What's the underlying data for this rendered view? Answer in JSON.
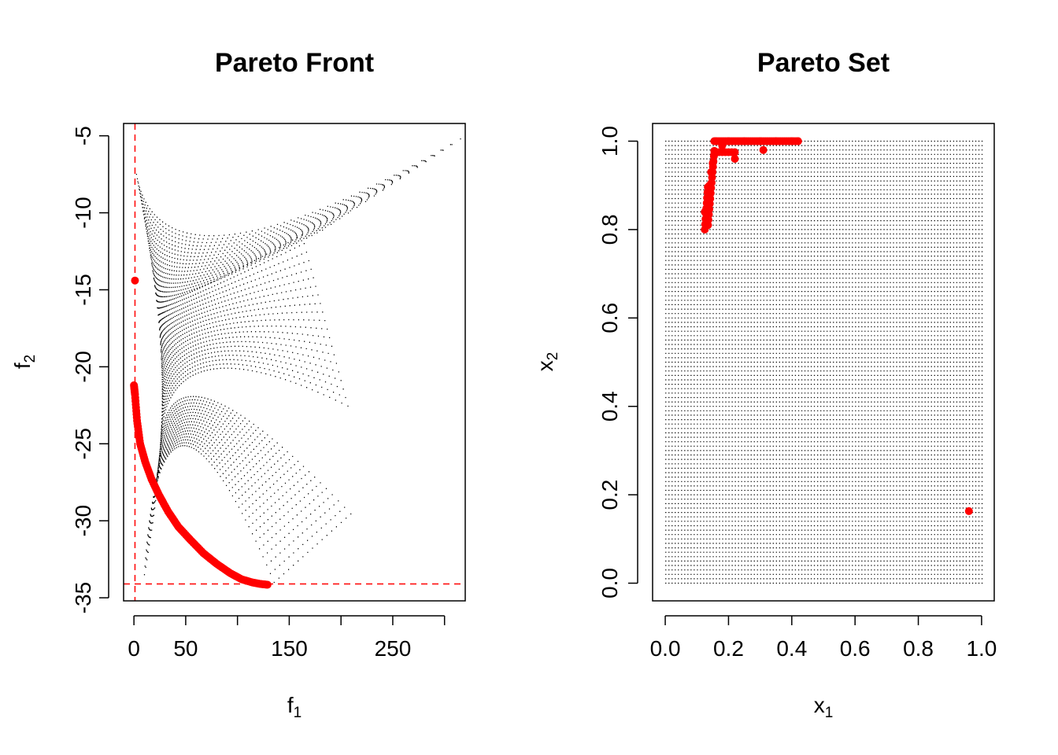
{
  "chart_data": [
    {
      "type": "scatter",
      "title": "Pareto Front",
      "xlabel": "f",
      "xlabel_sub": "1",
      "ylabel": "f",
      "ylabel_sub": "2",
      "xlim": [
        -10,
        320
      ],
      "ylim": [
        -35.2,
        -4.2
      ],
      "xticks": [
        0,
        50,
        150,
        250
      ],
      "xtick_marks": [
        0,
        50,
        100,
        150,
        200,
        250,
        300
      ],
      "yticks": [
        -5,
        -10,
        -15,
        -20,
        -25,
        -30,
        -35
      ],
      "reference_lines": {
        "x": 1,
        "y": -34.1,
        "color": "#ff0000",
        "style": "dashed"
      },
      "series": [
        {
          "role": "objective grid",
          "color": "#000000",
          "marker": "small dots",
          "extent": {
            "f1": [
              1,
              315
            ],
            "f2": [
              -34.1,
              -5.2
            ]
          }
        },
        {
          "role": "pareto front",
          "color": "#ff0000",
          "marker": "filled circle",
          "points": [
            [
              1,
              -14.4
            ],
            [
              0,
              -21.2
            ],
            [
              1,
              -21.8
            ],
            [
              3,
              -23.5
            ],
            [
              6,
              -25.0
            ],
            [
              11,
              -26.2
            ],
            [
              17,
              -27.3
            ],
            [
              24,
              -28.3
            ],
            [
              33,
              -29.4
            ],
            [
              43,
              -30.4
            ],
            [
              54,
              -31.2
            ],
            [
              67,
              -32.1
            ],
            [
              80,
              -32.8
            ],
            [
              93,
              -33.4
            ],
            [
              104,
              -33.8
            ],
            [
              114,
              -34.0
            ],
            [
              122,
              -34.1
            ],
            [
              129,
              -34.15
            ]
          ]
        }
      ]
    },
    {
      "type": "scatter",
      "title": "Pareto Set",
      "xlabel": "x",
      "xlabel_sub": "1",
      "ylabel": "x",
      "ylabel_sub": "2",
      "xlim": [
        -0.04,
        1.04
      ],
      "ylim": [
        -0.04,
        1.04
      ],
      "xticks": [
        0.0,
        0.2,
        0.4,
        0.6,
        0.8,
        1.0
      ],
      "yticks": [
        0.0,
        0.2,
        0.4,
        0.6,
        0.8,
        1.0
      ],
      "xtick_labels": [
        "0.0",
        "0.2",
        "0.4",
        "0.6",
        "0.8",
        "1.0"
      ],
      "ytick_labels": [
        "0.0",
        "0.2",
        "0.4",
        "0.6",
        "0.8",
        "1.0"
      ],
      "series": [
        {
          "role": "decision grid",
          "color": "#000000",
          "marker": "small dots",
          "extent": {
            "x1": [
              0,
              1
            ],
            "x2": [
              0,
              1
            ]
          }
        },
        {
          "role": "pareto set",
          "color": "#ff0000",
          "marker": "filled circle",
          "points": [
            [
              0.125,
              0.84
            ],
            [
              0.13,
              0.82
            ],
            [
              0.135,
              0.81
            ],
            [
              0.14,
              0.86
            ],
            [
              0.14,
              0.9
            ],
            [
              0.145,
              0.93
            ],
            [
              0.15,
              0.95
            ],
            [
              0.155,
              0.97
            ],
            [
              0.16,
              1.0
            ],
            [
              0.18,
              0.99
            ],
            [
              0.2,
              1.0
            ],
            [
              0.22,
              0.96
            ],
            [
              0.25,
              1.0
            ],
            [
              0.3,
              1.0
            ],
            [
              0.31,
              0.98
            ],
            [
              0.35,
              1.0
            ],
            [
              0.4,
              1.0
            ],
            [
              0.42,
              1.0
            ],
            [
              0.96,
              0.163
            ]
          ]
        }
      ]
    }
  ]
}
